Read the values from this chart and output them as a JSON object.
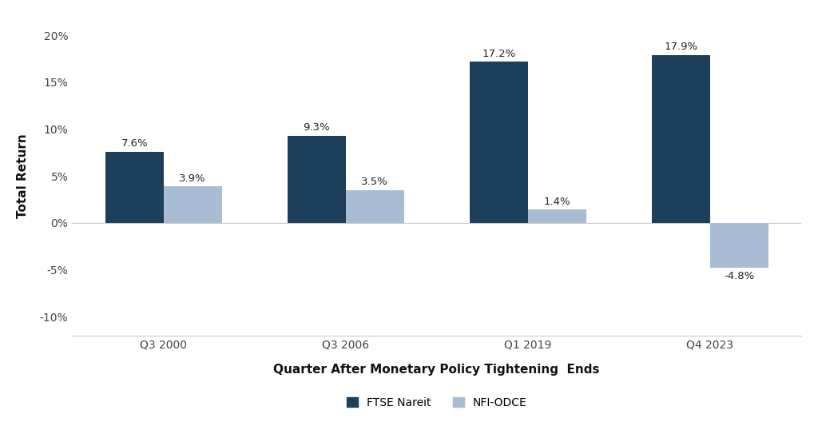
{
  "categories": [
    "Q3 2000",
    "Q3 2006",
    "Q1 2019",
    "Q4 2023"
  ],
  "ftse_nareit": [
    7.6,
    9.3,
    17.2,
    17.9
  ],
  "nfi_odce": [
    3.9,
    3.5,
    1.4,
    -4.8
  ],
  "ftse_color": "#1e3f5a",
  "nfi_color": "#a8bdd4",
  "xlabel": "Quarter After Monetary Policy Tightening  Ends",
  "ylabel": "Total Return",
  "ylim": [
    -12,
    22
  ],
  "yticks": [
    -10,
    -5,
    0,
    5,
    10,
    15,
    20
  ],
  "ytick_labels": [
    "-10%",
    "-5%",
    "0%",
    "5%",
    "10%",
    "15%",
    "20%"
  ],
  "background_color": "#ffffff",
  "bar_width": 0.32,
  "legend_ftse": "FTSE Nareit",
  "legend_nfi": "NFI-ODCE",
  "label_fontsize": 9.5,
  "axis_label_fontsize": 11,
  "tick_fontsize": 10
}
